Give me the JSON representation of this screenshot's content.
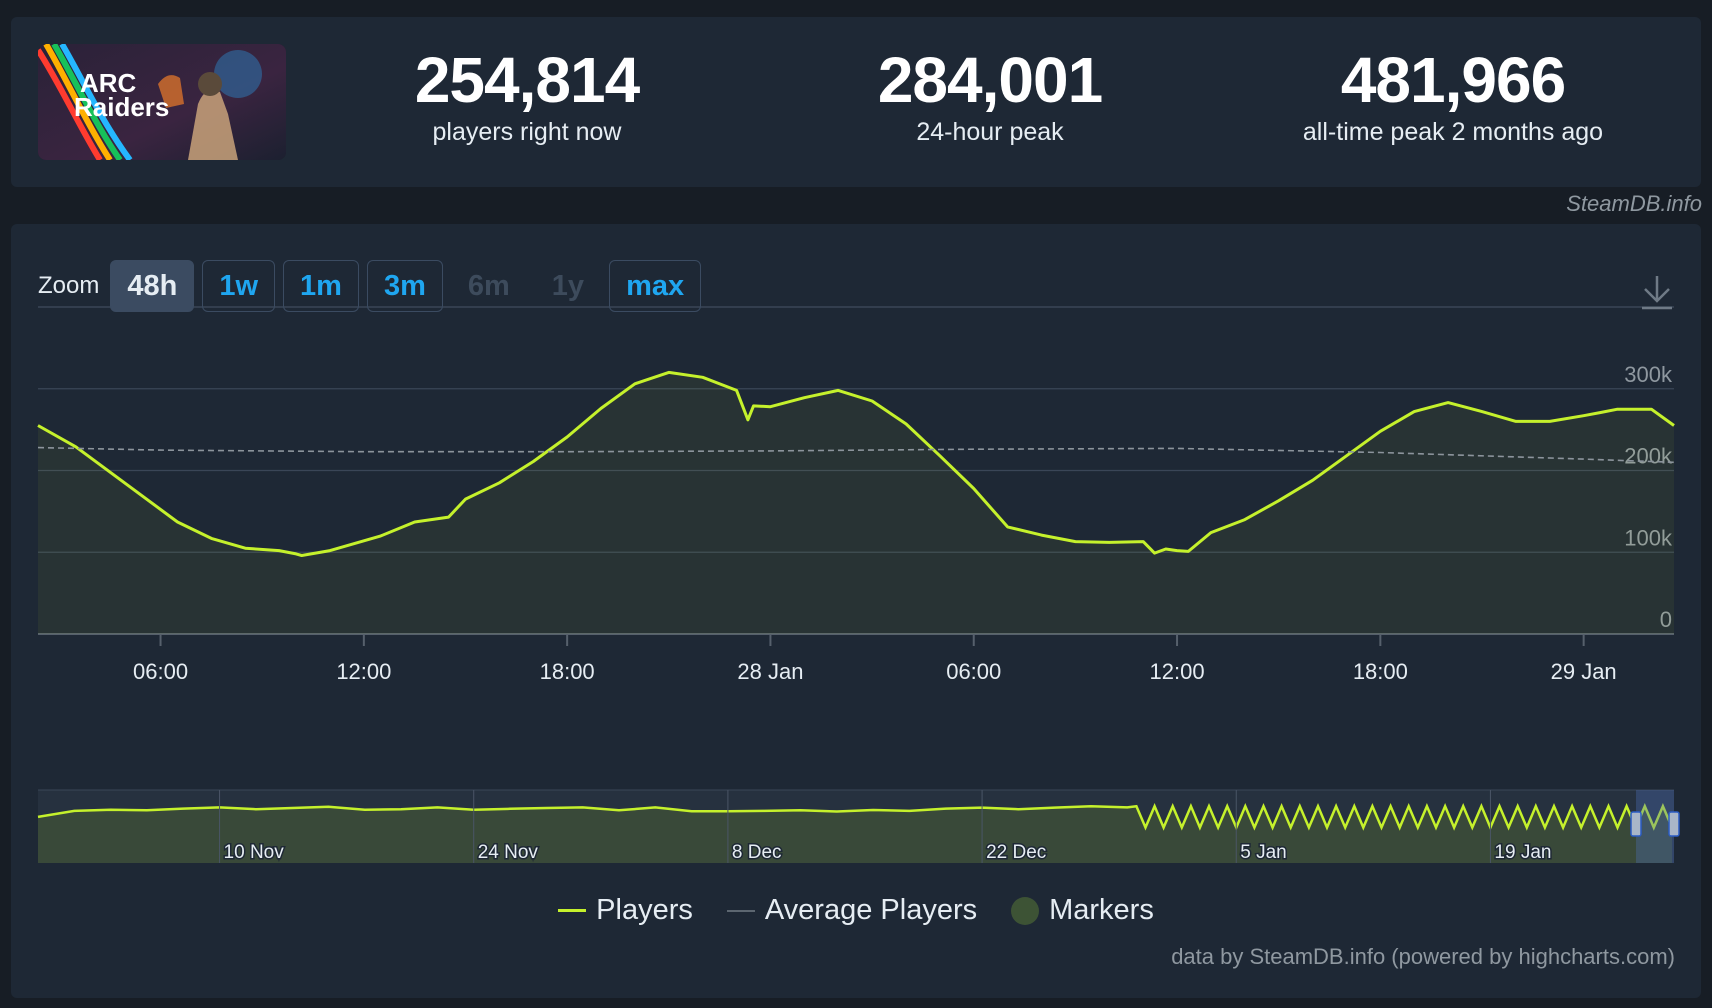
{
  "game": {
    "logo_text_line1": "ARC",
    "logo_text_line2": "Raiders"
  },
  "stats": [
    {
      "value": "254,814",
      "label": "players right now"
    },
    {
      "value": "284,001",
      "label": "24-hour peak"
    },
    {
      "value": "481,966",
      "label": "all-time peak 2 months ago"
    }
  ],
  "credit_top": "SteamDB.info",
  "zoom": {
    "label": "Zoom",
    "options": [
      {
        "label": "48h",
        "state": "active"
      },
      {
        "label": "1w",
        "state": "enabled"
      },
      {
        "label": "1m",
        "state": "enabled"
      },
      {
        "label": "3m",
        "state": "enabled"
      },
      {
        "label": "6m",
        "state": "disabled"
      },
      {
        "label": "1y",
        "state": "disabled"
      },
      {
        "label": "max",
        "state": "enabled"
      }
    ]
  },
  "download_icon": "download-icon",
  "legend": {
    "players": "Players",
    "average": "Average Players",
    "markers": "Markers"
  },
  "credit_bottom": "data by SteamDB.info (powered by highcharts.com)",
  "colors": {
    "players": "#c5f12c",
    "average": "#8c949c",
    "markers": "#3d5335",
    "accent": "#1fa6f0"
  },
  "chart_data": [
    {
      "type": "line",
      "title": "",
      "series": [
        {
          "name": "Players",
          "x": [
            "2025-01-27 02:23",
            "2025-01-27 03:30",
            "2025-01-27 05:00",
            "2025-01-27 06:30",
            "2025-01-27 07:30",
            "2025-01-27 08:30",
            "2025-01-27 09:30",
            "2025-01-27 10:00",
            "2025-01-27 10:10",
            "2025-01-27 11:00",
            "2025-01-27 12:30",
            "2025-01-27 13:30",
            "2025-01-27 14:30",
            "2025-01-27 15:00",
            "2025-01-27 16:00",
            "2025-01-27 17:00",
            "2025-01-27 18:00",
            "2025-01-27 19:00",
            "2025-01-27 20:00",
            "2025-01-27 21:00",
            "2025-01-27 22:00",
            "2025-01-27 23:00",
            "2025-01-27 23:20",
            "2025-01-27 23:30",
            "2025-01-28 00:00",
            "2025-01-28 01:00",
            "2025-01-28 02:00",
            "2025-01-28 03:00",
            "2025-01-28 04:00",
            "2025-01-28 05:00",
            "2025-01-28 06:00",
            "2025-01-28 07:00",
            "2025-01-28 08:00",
            "2025-01-28 09:00",
            "2025-01-28 10:00",
            "2025-01-28 11:00",
            "2025-01-28 11:20",
            "2025-01-28 11:40",
            "2025-01-28 12:00",
            "2025-01-28 12:20",
            "2025-01-28 13:00",
            "2025-01-28 14:00",
            "2025-01-28 15:00",
            "2025-01-28 16:00",
            "2025-01-28 17:00",
            "2025-01-28 18:00",
            "2025-01-28 19:00",
            "2025-01-28 20:00",
            "2025-01-28 21:00",
            "2025-01-28 22:00",
            "2025-01-28 23:00",
            "2025-01-29 00:00",
            "2025-01-29 00:30",
            "2025-01-29 01:00",
            "2025-01-29 02:00",
            "2025-01-29 02:40"
          ],
          "values": [
            255000,
            229000,
            183000,
            137000,
            117000,
            105000,
            102000,
            98000,
            96000,
            102000,
            120000,
            137000,
            143000,
            165000,
            185000,
            211000,
            241000,
            276000,
            306000,
            320000,
            314000,
            298000,
            262000,
            279000,
            278000,
            289000,
            298000,
            285000,
            257000,
            218000,
            178000,
            131000,
            121000,
            113000,
            112000,
            113000,
            99000,
            104000,
            102000,
            101000,
            124000,
            140000,
            163000,
            188000,
            218000,
            248000,
            272000,
            283000,
            272000,
            260000,
            260000,
            267000,
            271000,
            275000,
            275000,
            255000
          ]
        },
        {
          "name": "Average Players",
          "x": [
            "2025-01-27 02:23",
            "2025-01-27 06:00",
            "2025-01-27 12:00",
            "2025-01-27 18:00",
            "2025-01-28 00:00",
            "2025-01-28 06:00",
            "2025-01-28 12:00",
            "2025-01-28 18:00",
            "2025-01-29 00:00",
            "2025-01-29 02:40"
          ],
          "values": [
            228000,
            225000,
            223000,
            223000,
            224000,
            226000,
            227000,
            222000,
            214000,
            210000
          ]
        }
      ],
      "xticks": [
        "06:00",
        "12:00",
        "18:00",
        "28 Jan",
        "06:00",
        "12:00",
        "18:00",
        "29 Jan"
      ],
      "yticks": [
        "0",
        "100k",
        "200k",
        "300k"
      ],
      "ylim": [
        0,
        400000
      ],
      "grid": true
    },
    {
      "type": "area",
      "title": "",
      "xticks": [
        "10 Nov",
        "24 Nov",
        "8 Dec",
        "22 Dec",
        "5 Jan",
        "19 Jan"
      ],
      "series": [
        {
          "name": "Players",
          "x": [
            "2024-10-31",
            "2024-11-02",
            "2024-11-04",
            "2024-11-06",
            "2024-11-08",
            "2024-11-10",
            "2024-11-12",
            "2024-11-14",
            "2024-11-16",
            "2024-11-18",
            "2024-11-20",
            "2024-11-22",
            "2024-11-24",
            "2024-11-26",
            "2024-11-28",
            "2024-11-30",
            "2024-12-02",
            "2024-12-04",
            "2024-12-06",
            "2024-12-08",
            "2024-12-10",
            "2024-12-12",
            "2024-12-14",
            "2024-12-16",
            "2024-12-18",
            "2024-12-20",
            "2024-12-22",
            "2024-12-24",
            "2024-12-26",
            "2024-12-28",
            "2024-12-30"
          ],
          "values": [
            390000,
            440000,
            450000,
            445000,
            460000,
            470000,
            455000,
            465000,
            475000,
            450000,
            455000,
            470000,
            450000,
            458000,
            465000,
            470000,
            445000,
            470000,
            438000,
            438000,
            440000,
            445000,
            435000,
            448000,
            440000,
            460000,
            468000,
            455000,
            468000,
            480000,
            470000
          ]
        }
      ]
    }
  ]
}
